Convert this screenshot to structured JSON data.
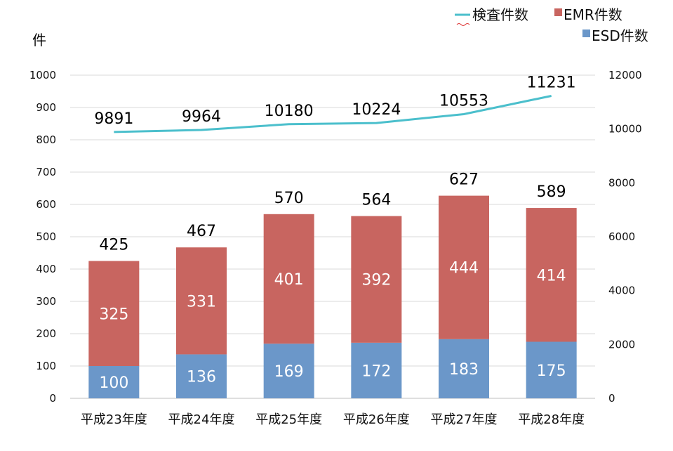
{
  "chart_data": {
    "type": "bar",
    "stacked": true,
    "unit_label": "件",
    "categories": [
      "平成23年度",
      "平成24年度",
      "平成25年度",
      "平成26年度",
      "平成27年度",
      "平成28年度"
    ],
    "series": [
      {
        "name": "ESD件数",
        "type": "bar",
        "axis": "left",
        "color": "#6b97c9",
        "values": [
          100,
          136,
          169,
          172,
          183,
          175
        ]
      },
      {
        "name": "EMR件数",
        "type": "bar",
        "axis": "left",
        "color": "#c86560",
        "values": [
          325,
          331,
          401,
          392,
          444,
          414
        ]
      },
      {
        "name": "検査件数",
        "type": "line",
        "axis": "right",
        "color": "#4bbfcc",
        "values": [
          9891,
          9964,
          10180,
          10224,
          10553,
          11231
        ]
      }
    ],
    "totals": [
      425,
      467,
      570,
      564,
      627,
      589
    ],
    "ylim": [
      0,
      1000
    ],
    "y_ticks": [
      0,
      100,
      200,
      300,
      400,
      500,
      600,
      700,
      800,
      900,
      1000
    ],
    "y2lim": [
      0,
      12000
    ],
    "y2_ticks": [
      0,
      2000,
      4000,
      6000,
      8000,
      10000,
      12000
    ],
    "grid": true,
    "legend_position": "top-right"
  }
}
